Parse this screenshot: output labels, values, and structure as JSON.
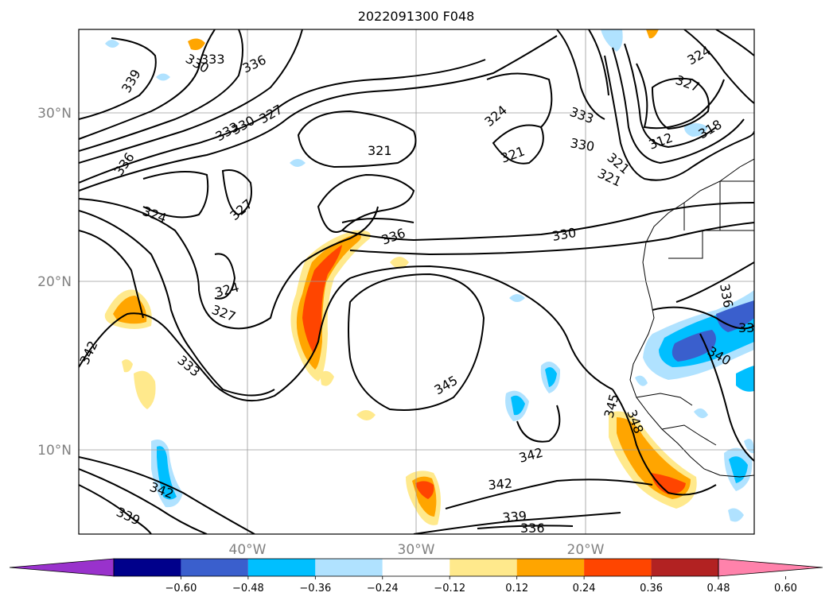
{
  "map": {
    "title": "2022091300 F048",
    "lat_labels": [
      {
        "text": "30°N",
        "lat": 30
      },
      {
        "text": "20°N",
        "lat": 20
      },
      {
        "text": "10°N",
        "lat": 10
      }
    ],
    "lon_labels": [
      {
        "text": "40°W",
        "lon": -40
      },
      {
        "text": "30°W",
        "lon": -30
      },
      {
        "text": "20°W",
        "lon": -20
      }
    ],
    "extent": {
      "lon_min": -52,
      "lon_max": -12,
      "lat_min": 5,
      "lat_max": 35
    },
    "contour_labels": [
      "330",
      "333",
      "336",
      "339",
      "327",
      "333",
      "330",
      "336",
      "324",
      "327",
      "324",
      "327",
      "333",
      "342",
      "321",
      "324",
      "321",
      "333",
      "330",
      "324",
      "327",
      "321",
      "330",
      "336",
      "345",
      "342",
      "342",
      "339",
      "336",
      "342",
      "339",
      "345",
      "348",
      "336",
      "33",
      "340",
      "312",
      "318",
      "321"
    ]
  },
  "colorbar": {
    "tick_labels": [
      "−0.60",
      "−0.48",
      "−0.36",
      "−0.24",
      "−0.12",
      "0.12",
      "0.24",
      "0.36",
      "0.48",
      "0.60"
    ],
    "colors": [
      "#9932cc",
      "#00008b",
      "#3a5fcd",
      "#00bfff",
      "#b0e2ff",
      "#ffffff",
      "#ffe98c",
      "#ffa500",
      "#ff4500",
      "#b22222",
      "#ff82ab"
    ]
  }
}
